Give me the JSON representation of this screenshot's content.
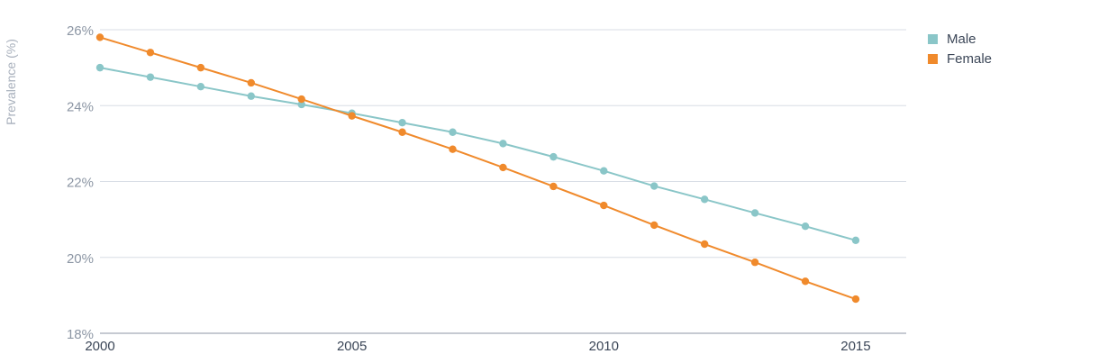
{
  "chart_data": {
    "type": "line",
    "title": "",
    "xlabel": "",
    "ylabel": "Prevalence (%)",
    "x": [
      2000,
      2001,
      2002,
      2003,
      2004,
      2005,
      2006,
      2007,
      2008,
      2009,
      2010,
      2011,
      2012,
      2013,
      2014,
      2015
    ],
    "x_ticks": [
      "2000",
      "2005",
      "2010",
      "2015"
    ],
    "y_ticks": [
      "18%",
      "20%",
      "22%",
      "24%",
      "26%"
    ],
    "xlim": [
      2000,
      2016
    ],
    "ylim": [
      18,
      26
    ],
    "grid": true,
    "legend_position": "top-right",
    "series": [
      {
        "name": "Male",
        "color": "#8ac6c8",
        "values": [
          25.0,
          24.75,
          24.5,
          24.25,
          24.03,
          23.8,
          23.55,
          23.3,
          23.0,
          22.65,
          22.28,
          21.88,
          21.53,
          21.17,
          20.82,
          20.45
        ]
      },
      {
        "name": "Female",
        "color": "#f08a2c",
        "values": [
          25.8,
          25.4,
          25.0,
          24.6,
          24.17,
          23.73,
          23.3,
          22.85,
          22.37,
          21.87,
          21.37,
          20.85,
          20.35,
          19.87,
          19.37,
          18.9
        ]
      }
    ]
  }
}
